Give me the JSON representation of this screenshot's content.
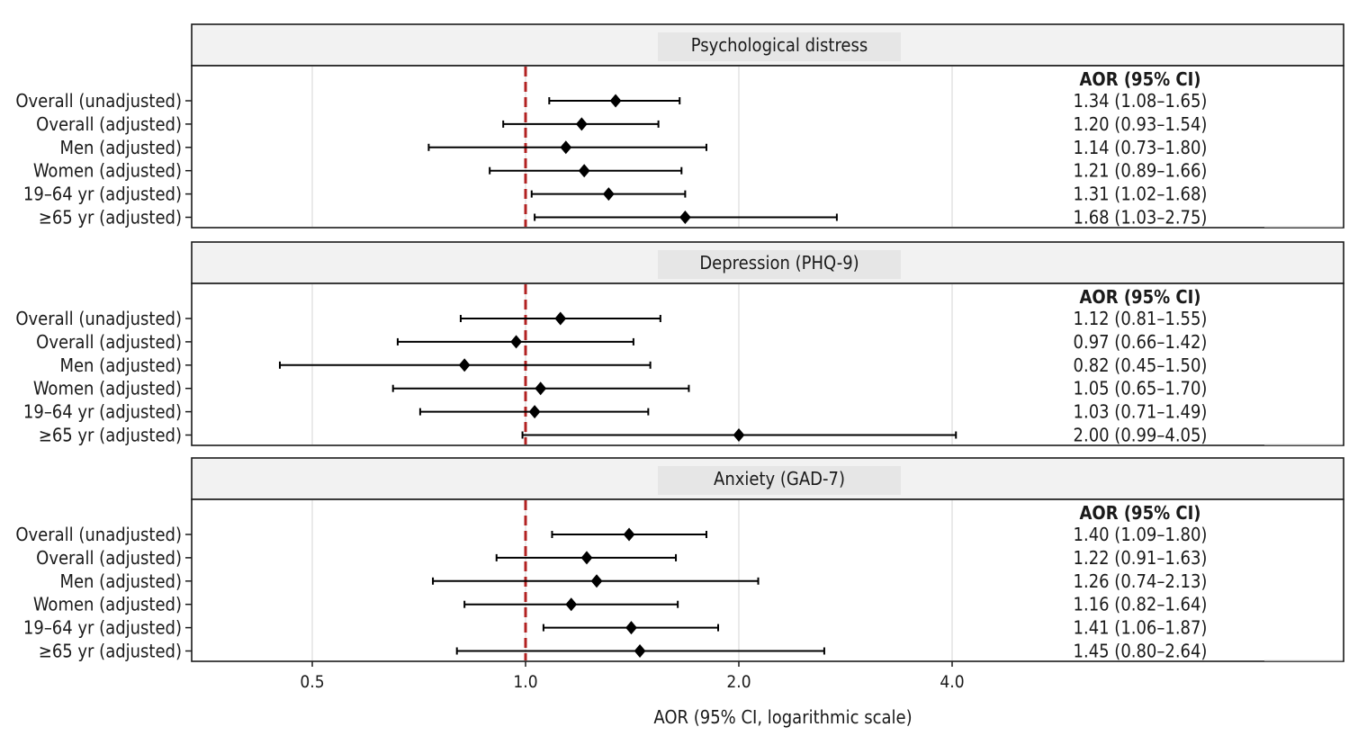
{
  "chart_data": {
    "type": "forest",
    "xlabel": "AOR (95% CI, logarithmic scale)",
    "x_scale": "log2",
    "xlim": [
      0.38,
      10.5
    ],
    "xticks": [
      0.5,
      1.0,
      2.0,
      4.0
    ],
    "xtick_labels": [
      "0.5",
      "1.0",
      "2.0",
      "4.0"
    ],
    "reference_line": 1.0,
    "reference_color": "#b22222",
    "grid": true,
    "row_labels": [
      "Overall (unadjusted)",
      "Overall (adjusted)",
      "Men (adjusted)",
      "Women (adjusted)",
      "19–64 yr (adjusted)",
      "≥65 yr (adjusted)"
    ],
    "panels": [
      {
        "title": "Psychological distress",
        "table_header": "AOR (95% CI)",
        "rows": [
          {
            "label": "Overall (unadjusted)",
            "aor": 1.34,
            "lo": 1.08,
            "hi": 1.65,
            "text": "1.34 (1.08–1.65)"
          },
          {
            "label": "Overall (adjusted)",
            "aor": 1.2,
            "lo": 0.93,
            "hi": 1.54,
            "text": "1.20 (0.93–1.54)"
          },
          {
            "label": "Men (adjusted)",
            "aor": 1.14,
            "lo": 0.73,
            "hi": 1.8,
            "text": "1.14 (0.73–1.80)"
          },
          {
            "label": "Women (adjusted)",
            "aor": 1.21,
            "lo": 0.89,
            "hi": 1.66,
            "text": "1.21 (0.89–1.66)"
          },
          {
            "label": "19–64 yr (adjusted)",
            "aor": 1.31,
            "lo": 1.02,
            "hi": 1.68,
            "text": "1.31 (1.02–1.68)"
          },
          {
            "label": "≥65 yr (adjusted)",
            "aor": 1.68,
            "lo": 1.03,
            "hi": 2.75,
            "text": "1.68 (1.03–2.75)"
          }
        ]
      },
      {
        "title": "Depression (PHQ-9)",
        "table_header": "AOR (95% CI)",
        "rows": [
          {
            "label": "Overall (unadjusted)",
            "aor": 1.12,
            "lo": 0.81,
            "hi": 1.55,
            "text": "1.12 (0.81–1.55)"
          },
          {
            "label": "Overall (adjusted)",
            "aor": 0.97,
            "lo": 0.66,
            "hi": 1.42,
            "text": "0.97 (0.66–1.42)"
          },
          {
            "label": "Men (adjusted)",
            "aor": 0.82,
            "lo": 0.45,
            "hi": 1.5,
            "text": "0.82 (0.45–1.50)"
          },
          {
            "label": "Women (adjusted)",
            "aor": 1.05,
            "lo": 0.65,
            "hi": 1.7,
            "text": "1.05 (0.65–1.70)"
          },
          {
            "label": "19–64 yr (adjusted)",
            "aor": 1.03,
            "lo": 0.71,
            "hi": 1.49,
            "text": "1.03 (0.71–1.49)"
          },
          {
            "label": "≥65 yr (adjusted)",
            "aor": 2.0,
            "lo": 0.99,
            "hi": 4.05,
            "text": "2.00 (0.99–4.05)"
          }
        ]
      },
      {
        "title": "Anxiety (GAD-7)",
        "table_header": "AOR (95% CI)",
        "rows": [
          {
            "label": "Overall (unadjusted)",
            "aor": 1.4,
            "lo": 1.09,
            "hi": 1.8,
            "text": "1.40 (1.09–1.80)"
          },
          {
            "label": "Overall (adjusted)",
            "aor": 1.22,
            "lo": 0.91,
            "hi": 1.63,
            "text": "1.22 (0.91–1.63)"
          },
          {
            "label": "Men (adjusted)",
            "aor": 1.26,
            "lo": 0.74,
            "hi": 2.13,
            "text": "1.26 (0.74–2.13)"
          },
          {
            "label": "Women (adjusted)",
            "aor": 1.16,
            "lo": 0.82,
            "hi": 1.64,
            "text": "1.16 (0.82–1.64)"
          },
          {
            "label": "19–64 yr (adjusted)",
            "aor": 1.41,
            "lo": 1.06,
            "hi": 1.87,
            "text": "1.41 (1.06–1.87)"
          },
          {
            "label": "≥65 yr (adjusted)",
            "aor": 1.45,
            "lo": 0.8,
            "hi": 2.64,
            "text": "1.45 (0.80–2.64)"
          }
        ]
      }
    ]
  }
}
